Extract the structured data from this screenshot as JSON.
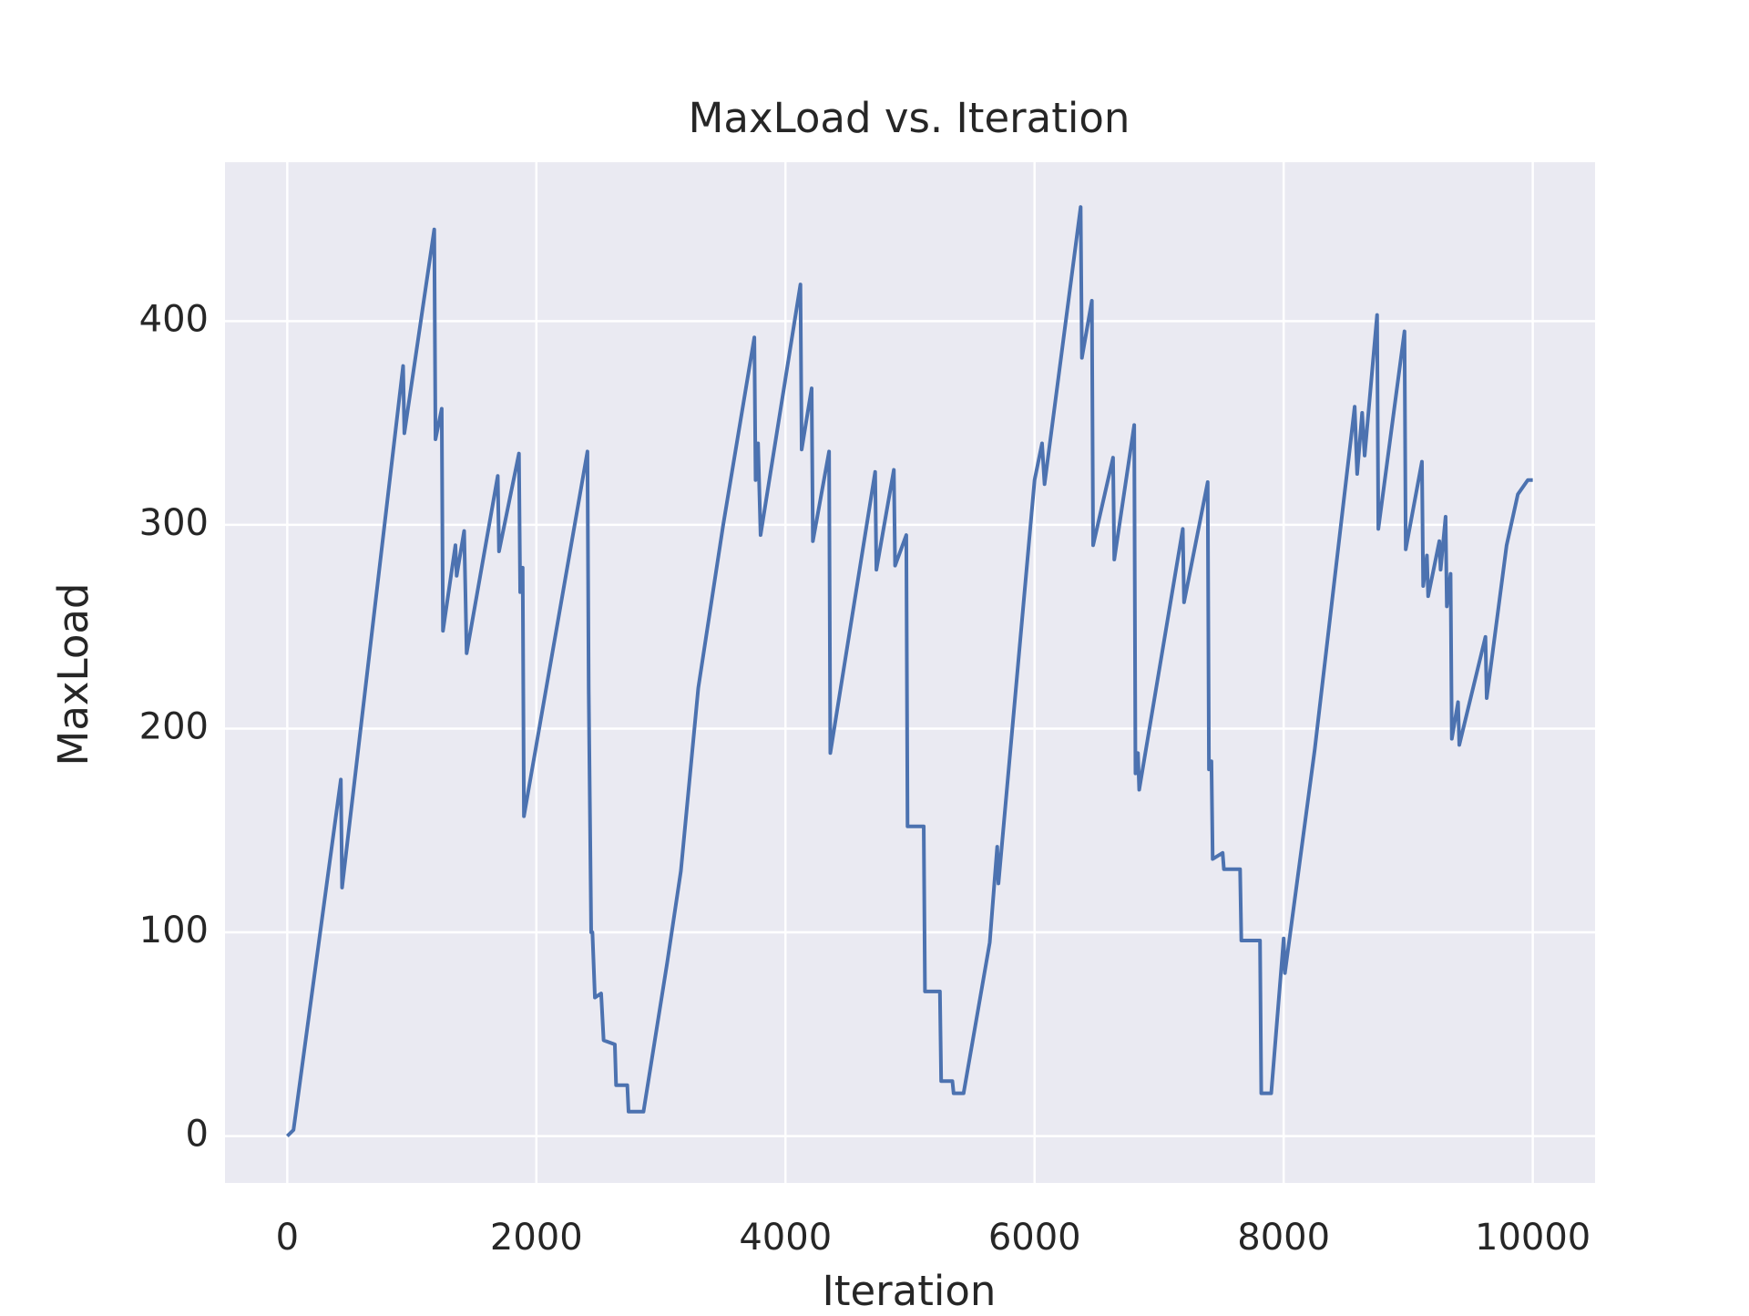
{
  "chart_data": {
    "type": "line",
    "title": "MaxLoad vs. Iteration",
    "x_label": "Iteration",
    "y_label": "MaxLoad",
    "x": [
      0,
      50,
      430,
      440,
      930,
      940,
      1180,
      1190,
      1240,
      1250,
      1350,
      1360,
      1420,
      1430,
      1440,
      1690,
      1700,
      1860,
      1870,
      1890,
      1900,
      2410,
      2420,
      2440,
      2450,
      2470,
      2520,
      2540,
      2630,
      2640,
      2730,
      2740,
      2860,
      3050,
      3160,
      3300,
      3500,
      3750,
      3760,
      3780,
      3800,
      4120,
      4130,
      4210,
      4220,
      4350,
      4360,
      4720,
      4730,
      4870,
      4880,
      4970,
      4980,
      5110,
      5120,
      5240,
      5250,
      5340,
      5350,
      5430,
      5640,
      5700,
      5710,
      6000,
      6060,
      6080,
      6370,
      6380,
      6460,
      6470,
      6630,
      6640,
      6800,
      6810,
      6830,
      6840,
      7190,
      7200,
      7390,
      7400,
      7420,
      7430,
      7510,
      7520,
      7650,
      7660,
      7810,
      7820,
      7900,
      8000,
      8010,
      8250,
      8570,
      8590,
      8630,
      8650,
      8750,
      8760,
      8970,
      8980,
      9110,
      9120,
      9150,
      9160,
      9250,
      9260,
      9300,
      9310,
      9340,
      9350,
      9400,
      9410,
      9620,
      9630,
      9790,
      9880,
      9960,
      10000
    ],
    "series": [
      {
        "name": "MaxLoad",
        "color": "#4c72b0",
        "values": [
          0,
          3,
          175,
          122,
          378,
          345,
          445,
          342,
          357,
          248,
          290,
          275,
          297,
          268,
          237,
          324,
          287,
          335,
          267,
          279,
          157,
          336,
          220,
          100,
          100,
          68,
          70,
          47,
          45,
          25,
          25,
          12,
          12,
          85,
          130,
          220,
          300,
          392,
          322,
          340,
          295,
          418,
          337,
          367,
          292,
          336,
          188,
          326,
          278,
          327,
          280,
          295,
          152,
          152,
          71,
          71,
          27,
          27,
          21,
          21,
          95,
          142,
          124,
          322,
          340,
          320,
          456,
          382,
          410,
          290,
          333,
          283,
          349,
          178,
          188,
          170,
          298,
          262,
          321,
          180,
          184,
          136,
          139,
          131,
          131,
          96,
          96,
          21,
          21,
          97,
          80,
          190,
          358,
          325,
          355,
          334,
          403,
          298,
          395,
          288,
          331,
          270,
          285,
          265,
          292,
          278,
          304,
          260,
          276,
          195,
          213,
          192,
          245,
          215,
          290,
          315,
          322,
          322
        ]
      }
    ],
    "xlim": [
      -500,
      10500
    ],
    "ylim": [
      -23,
      478
    ],
    "xticks": [
      0,
      2000,
      4000,
      6000,
      8000,
      10000
    ],
    "yticks": [
      0,
      100,
      200,
      300,
      400
    ],
    "grid": true,
    "background": "#eaeaf2"
  }
}
